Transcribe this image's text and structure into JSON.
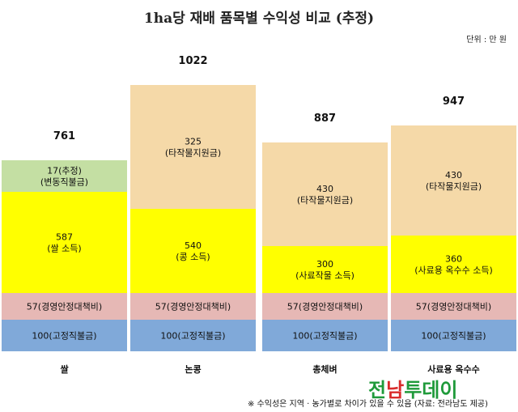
{
  "title": "1ha당 재배 품목별 수익성 비교 (추정)",
  "unit": "단위 : 만 원",
  "footnote": "※ 수익성은 지역 · 농가별로 차이가 있을 수 있음 (자료: 전라남도 제공)",
  "watermark": {
    "part1": "전",
    "part2": "남",
    "part3": "투데이"
  },
  "colors": {
    "fixed": "#80a9d9",
    "mgmt": "#e6b8b5",
    "income": "#ffff00",
    "other_support": "#f5d9a8",
    "change_support": "#c4dfa3"
  },
  "chart_data": {
    "type": "bar",
    "stacked": true,
    "categories": [
      "쌀",
      "논콩",
      "총체벼",
      "사료용 옥수수"
    ],
    "totals": [
      761,
      1022,
      887,
      947
    ],
    "series": [
      {
        "key": "fixed",
        "values": [
          100,
          100,
          100,
          100
        ],
        "labels": [
          "100(고정직불금)",
          "100(고정직불금)",
          "100(고정직불금)",
          "100(고정직불금)"
        ]
      },
      {
        "key": "mgmt",
        "values": [
          57,
          57,
          57,
          57
        ],
        "labels": [
          "57(경영안정대책비)",
          "57(경영안정대책비)",
          "57(경영안정대책비)",
          "57(경영안정대책비)"
        ]
      },
      {
        "key": "income",
        "values": [
          587,
          540,
          300,
          360
        ],
        "labels": [
          "587|(쌀 소득)",
          "540|(콩 소득)",
          "300|(사료작물 소득)",
          "360|(사료용 옥수수 소득)"
        ]
      },
      {
        "key": "change_support",
        "values": [
          17,
          null,
          null,
          null
        ],
        "labels": [
          "17(추정)|(변동직불금)",
          "",
          "",
          ""
        ]
      },
      {
        "key": "other_support",
        "values": [
          null,
          325,
          430,
          430
        ],
        "labels": [
          "",
          "325|(타작물지원금)",
          "430|(타작물지원금)",
          "430|(타작물지원금)"
        ]
      }
    ]
  }
}
